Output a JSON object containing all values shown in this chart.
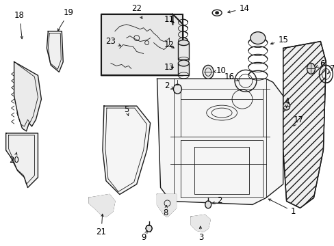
{
  "bg_color": "#ffffff",
  "line_color": "#1a1a1a",
  "label_color": "#000000",
  "fig_w": 4.89,
  "fig_h": 3.6,
  "dpi": 100
}
